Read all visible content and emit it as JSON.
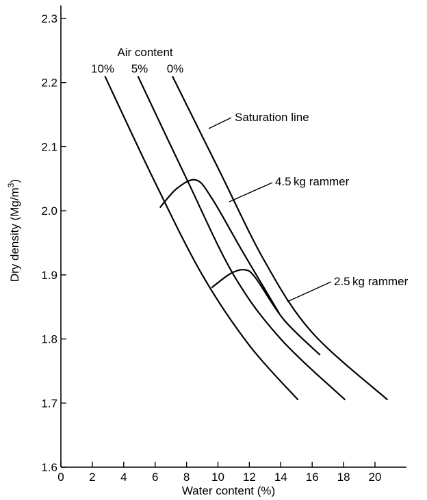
{
  "chart_data": {
    "type": "line",
    "xlabel": "Water content (%)",
    "ylabel_main": "Dry density (Mg/m",
    "ylabel_sup": "3",
    "ylabel_close": ")",
    "xlim": [
      0,
      22
    ],
    "ylim": [
      1.6,
      2.32
    ],
    "xticks": [
      0,
      2,
      4,
      6,
      8,
      10,
      12,
      14,
      16,
      18,
      20
    ],
    "yticks": [
      1.6,
      1.7,
      1.8,
      1.9,
      2.0,
      2.1,
      2.2,
      2.3
    ],
    "xtick_labels": [
      "0",
      "2",
      "4",
      "6",
      "8",
      "10",
      "12",
      "14",
      "16",
      "18",
      "20"
    ],
    "ytick_labels": [
      "1.6",
      "1.7",
      "1.8",
      "1.9",
      "2.0",
      "2.1",
      "2.2",
      "2.3"
    ],
    "series": [
      {
        "name": "10%",
        "x": [
          2.8,
          6.0,
          9.0,
          12.0,
          15.1
        ],
        "y": [
          2.21,
          2.044,
          1.9,
          1.79,
          1.705
        ]
      },
      {
        "name": "5%",
        "x": [
          4.9,
          8.0,
          11.0,
          14.0,
          18.1
        ],
        "y": [
          2.21,
          2.05,
          1.9,
          1.8,
          1.705
        ]
      },
      {
        "name": "0%",
        "x": [
          7.1,
          10.0,
          13.0,
          16.0,
          20.8
        ],
        "y": [
          2.21,
          2.067,
          1.92,
          1.81,
          1.705
        ]
      },
      {
        "name": "4.5 kg rammer",
        "x": [
          6.3,
          7.4,
          8.6,
          9.6,
          11.6,
          13.9
        ],
        "y": [
          2.005,
          2.035,
          2.048,
          2.02,
          1.935,
          1.84
        ]
      },
      {
        "name": "2.5 kg rammer",
        "x": [
          9.6,
          10.8,
          11.7,
          12.4,
          14.2,
          16.5
        ],
        "y": [
          1.88,
          1.902,
          1.908,
          1.895,
          1.83,
          1.775
        ]
      }
    ],
    "legend_title": "Air content",
    "legend_entries": [
      "10%",
      "5%",
      "0%"
    ],
    "annotations": {
      "saturation": "Saturation line",
      "rammer45": "4.5 kg rammer",
      "rammer25": "2.5 kg rammer"
    }
  }
}
